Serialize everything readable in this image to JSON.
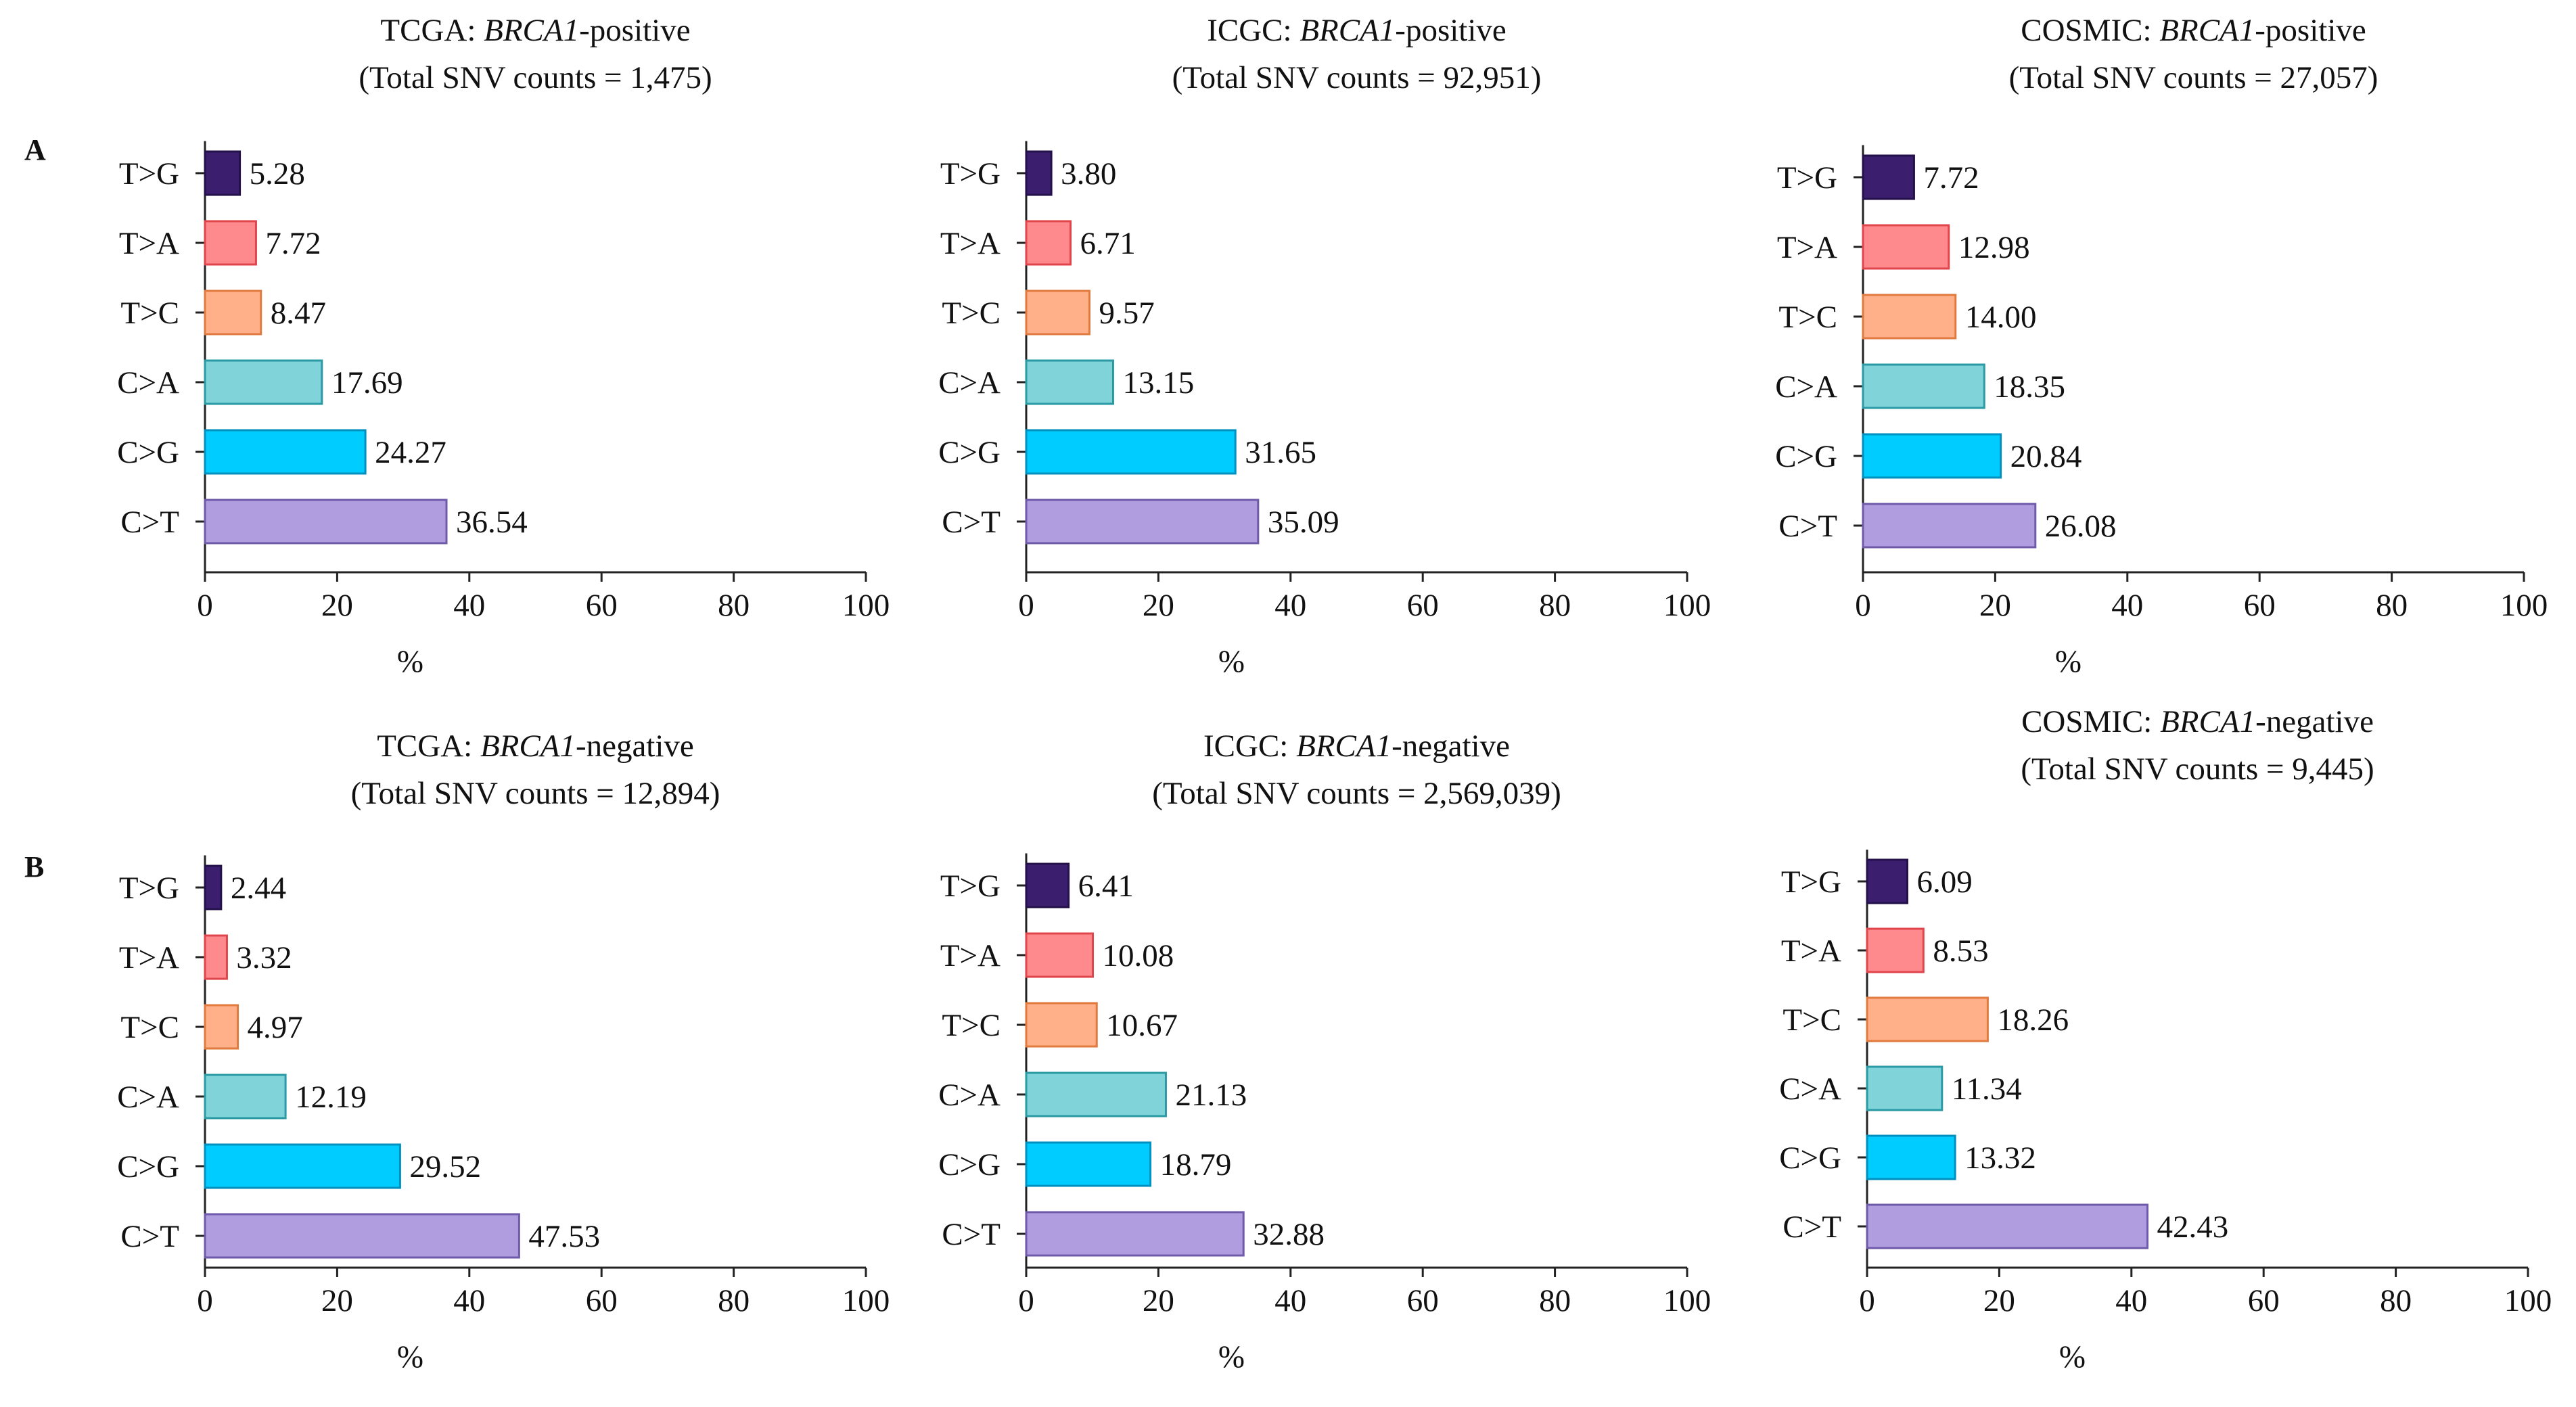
{
  "figure": {
    "panel_labels": [
      "A",
      "B"
    ]
  },
  "chart_data": [
    {
      "type": "bar",
      "orientation": "horizontal",
      "panel": "A",
      "title_source": "TCGA",
      "title_gene": "BRCA1",
      "title_status": "-positive",
      "subtitle": "(Total SNV counts = 1,475)",
      "categories": [
        "T>G",
        "T>A",
        "T>C",
        "C>A",
        "C>G",
        "C>T"
      ],
      "values": [
        5.28,
        7.72,
        8.47,
        17.69,
        24.27,
        36.54
      ],
      "labels": [
        "5.28",
        "7.72",
        "8.47",
        "17.69",
        "24.27",
        "36.54"
      ],
      "xlabel": "%",
      "xlim": [
        0,
        100
      ],
      "xticks": [
        0,
        20,
        40,
        60,
        80,
        100
      ]
    },
    {
      "type": "bar",
      "orientation": "horizontal",
      "panel": "A",
      "title_source": "ICGC",
      "title_gene": "BRCA1",
      "title_status": "-positive",
      "subtitle": "(Total SNV counts = 92,951)",
      "categories": [
        "T>G",
        "T>A",
        "T>C",
        "C>A",
        "C>G",
        "C>T"
      ],
      "values": [
        3.8,
        6.71,
        9.57,
        13.15,
        31.65,
        35.09
      ],
      "labels": [
        "3.80",
        "6.71",
        "9.57",
        "13.15",
        "31.65",
        "35.09"
      ],
      "xlabel": "%",
      "xlim": [
        0,
        100
      ],
      "xticks": [
        0,
        20,
        40,
        60,
        80,
        100
      ]
    },
    {
      "type": "bar",
      "orientation": "horizontal",
      "panel": "A",
      "title_source": "COSMIC",
      "title_gene": "BRCA1",
      "title_status": "-positive",
      "subtitle": "(Total SNV counts = 27,057)",
      "categories": [
        "T>G",
        "T>A",
        "T>C",
        "C>A",
        "C>G",
        "C>T"
      ],
      "values": [
        7.72,
        12.98,
        14.0,
        18.35,
        20.84,
        26.08
      ],
      "labels": [
        "7.72",
        "12.98",
        "14.00",
        "18.35",
        "20.84",
        "26.08"
      ],
      "xlabel": "%",
      "xlim": [
        0,
        100
      ],
      "xticks": [
        0,
        20,
        40,
        60,
        80,
        100
      ]
    },
    {
      "type": "bar",
      "orientation": "horizontal",
      "panel": "B",
      "title_source": "TCGA",
      "title_gene": "BRCA1",
      "title_status": "-negative",
      "subtitle": "(Total SNV counts = 12,894)",
      "categories": [
        "T>G",
        "T>A",
        "T>C",
        "C>A",
        "C>G",
        "C>T"
      ],
      "values": [
        2.44,
        3.32,
        4.97,
        12.19,
        29.52,
        47.53
      ],
      "labels": [
        "2.44",
        "3.32",
        "4.97",
        "12.19",
        "29.52",
        "47.53"
      ],
      "xlabel": "%",
      "xlim": [
        0,
        100
      ],
      "xticks": [
        0,
        20,
        40,
        60,
        80,
        100
      ]
    },
    {
      "type": "bar",
      "orientation": "horizontal",
      "panel": "B",
      "title_source": "ICGC",
      "title_gene": "BRCA1",
      "title_status": "-negative",
      "subtitle": "(Total SNV counts = 2,569,039)",
      "categories": [
        "T>G",
        "T>A",
        "T>C",
        "C>A",
        "C>G",
        "C>T"
      ],
      "values": [
        6.41,
        10.08,
        10.67,
        21.13,
        18.79,
        32.88
      ],
      "labels": [
        "6.41",
        "10.08",
        "10.67",
        "21.13",
        "18.79",
        "32.88"
      ],
      "xlabel": "%",
      "xlim": [
        0,
        100
      ],
      "xticks": [
        0,
        20,
        40,
        60,
        80,
        100
      ]
    },
    {
      "type": "bar",
      "orientation": "horizontal",
      "panel": "B",
      "title_source": "COSMIC",
      "title_gene": "BRCA1",
      "title_status": "-negative",
      "subtitle": "(Total SNV counts = 9,445)",
      "categories": [
        "T>G",
        "T>A",
        "T>C",
        "C>A",
        "C>G",
        "C>T"
      ],
      "values": [
        6.09,
        8.53,
        18.26,
        11.34,
        13.32,
        42.43
      ],
      "labels": [
        "6.09",
        "8.53",
        "18.26",
        "11.34",
        "13.32",
        "42.43"
      ],
      "xlabel": "%",
      "xlim": [
        0,
        100
      ],
      "xticks": [
        0,
        20,
        40,
        60,
        80,
        100
      ]
    }
  ],
  "colors": {
    "T>G": {
      "fill": "#3b1f6e",
      "stroke": "#24104a"
    },
    "T>A": {
      "fill": "#ff8a8e",
      "stroke": "#e0454c"
    },
    "T>C": {
      "fill": "#ffb088",
      "stroke": "#e07a3e"
    },
    "C>A": {
      "fill": "#7fd3d9",
      "stroke": "#2a9aa4"
    },
    "C>G": {
      "fill": "#00ccff",
      "stroke": "#0090c0"
    },
    "C>T": {
      "fill": "#b09de0",
      "stroke": "#6e5aa8"
    }
  }
}
